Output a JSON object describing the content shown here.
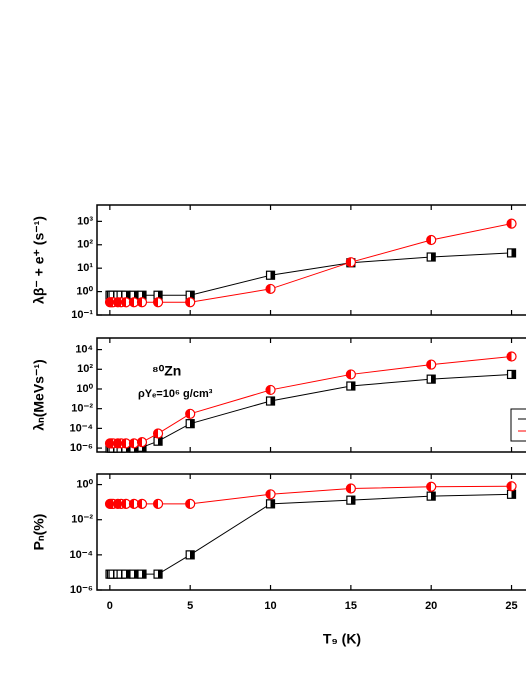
{
  "chart_data": [
    {
      "type": "line",
      "ylabel": "λβ⁻ + e⁺ (s⁻¹)",
      "log_y": true,
      "xlim": [
        -0.8,
        25.9
      ],
      "xticks": [
        0,
        5,
        10,
        15,
        20,
        25
      ],
      "ylim": [
        0.1,
        5000
      ],
      "yticks": [
        {
          "value": 0.1,
          "label": "10⁻¹"
        },
        {
          "value": 1,
          "label": "10⁰"
        },
        {
          "value": 10,
          "label": "10¹"
        },
        {
          "value": 100,
          "label": "10²"
        },
        {
          "value": 1000,
          "label": "10³"
        }
      ],
      "x": [
        0.01,
        0.1,
        0.2,
        0.5,
        0.7,
        1,
        1.5,
        2,
        3,
        5,
        10,
        15,
        20,
        25
      ],
      "series": [
        {
          "color": "#000000",
          "marker": "square",
          "values": [
            0.7,
            0.7,
            0.7,
            0.7,
            0.7,
            0.7,
            0.7,
            0.7,
            0.7,
            0.7,
            5,
            17,
            30,
            45
          ]
        },
        {
          "color": "#ff0000",
          "marker": "circle",
          "values": [
            0.35,
            0.35,
            0.35,
            0.35,
            0.35,
            0.35,
            0.35,
            0.35,
            0.35,
            0.35,
            1.3,
            18,
            160,
            800
          ]
        }
      ]
    },
    {
      "type": "line",
      "ylabel": "λₙ(MeVs⁻¹)",
      "log_y": true,
      "annotations": [
        "⁸⁰Zn",
        "ρYₑ=10⁶ g/cm³"
      ],
      "xlim": [
        -0.8,
        25.9
      ],
      "xticks": [
        0,
        5,
        10,
        15,
        20,
        25
      ],
      "ylim": [
        4e-07,
        150000
      ],
      "yticks": [
        {
          "value": 1e-06,
          "label": "10⁻⁶"
        },
        {
          "value": 0.0001,
          "label": "10⁻⁴"
        },
        {
          "value": 0.01,
          "label": "10⁻²"
        },
        {
          "value": 1,
          "label": "10⁰"
        },
        {
          "value": 100,
          "label": "10²"
        },
        {
          "value": 10000,
          "label": "10⁴"
        }
      ],
      "x": [
        0.01,
        0.1,
        0.2,
        0.5,
        0.7,
        1,
        1.5,
        2,
        3,
        5,
        10,
        15,
        20,
        25
      ],
      "series": [
        {
          "color": "#000000",
          "marker": "square",
          "values": [
            1e-06,
            1e-06,
            1e-06,
            1e-06,
            1e-06,
            1e-06,
            1e-06,
            1.2e-06,
            5e-06,
            0.0003,
            0.06,
            2,
            10,
            30
          ]
        },
        {
          "color": "#ff0000",
          "marker": "circle",
          "values": [
            3e-06,
            3e-06,
            3e-06,
            3e-06,
            3e-06,
            3e-06,
            3e-06,
            4e-06,
            3e-05,
            0.003,
            0.8,
            30,
            300,
            2000
          ]
        }
      ]
    },
    {
      "type": "line",
      "ylabel": "Pₙ(%)",
      "xlabel": "T₉ (K)",
      "log_y": true,
      "xlim": [
        -0.8,
        25.9
      ],
      "xticks": [
        0,
        5,
        10,
        15,
        20,
        25
      ],
      "ylim": [
        1e-06,
        4
      ],
      "yticks": [
        {
          "value": 1e-06,
          "label": "10⁻⁶"
        },
        {
          "value": 0.0001,
          "label": "10⁻⁴"
        },
        {
          "value": 0.01,
          "label": "10⁻²"
        },
        {
          "value": 1,
          "label": "10⁰"
        }
      ],
      "x": [
        0.01,
        0.1,
        0.2,
        0.5,
        0.7,
        1,
        1.5,
        2,
        3,
        5,
        10,
        15,
        20,
        25
      ],
      "series": [
        {
          "color": "#000000",
          "marker": "square",
          "values": [
            8e-06,
            8e-06,
            8e-06,
            8e-06,
            8e-06,
            8e-06,
            8e-06,
            8e-06,
            8e-06,
            0.0001,
            0.08,
            0.13,
            0.22,
            0.28
          ]
        },
        {
          "color": "#ff0000",
          "marker": "circle",
          "values": [
            0.08,
            0.08,
            0.08,
            0.08,
            0.08,
            0.08,
            0.08,
            0.08,
            0.08,
            0.08,
            0.28,
            0.6,
            0.75,
            0.8
          ]
        }
      ]
    }
  ]
}
